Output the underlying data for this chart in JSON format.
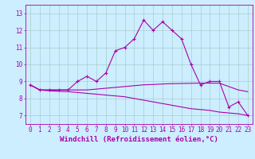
{
  "xlabel": "Windchill (Refroidissement éolien,°C)",
  "bg_color": "#cceeff",
  "grid_color": "#aacccc",
  "line_color": "#aa00aa",
  "x_ticks": [
    0,
    1,
    2,
    3,
    4,
    5,
    6,
    7,
    8,
    9,
    10,
    11,
    12,
    13,
    14,
    15,
    16,
    17,
    18,
    19,
    20,
    21,
    22,
    23
  ],
  "xlim": [
    -0.5,
    23.5
  ],
  "ylim": [
    6.5,
    13.5
  ],
  "y_ticks": [
    7,
    8,
    9,
    10,
    11,
    12,
    13
  ],
  "line1": [
    8.8,
    8.5,
    8.5,
    8.5,
    8.5,
    9.0,
    9.3,
    9.0,
    9.5,
    10.8,
    11.0,
    11.5,
    12.6,
    12.0,
    12.5,
    12.0,
    11.5,
    10.0,
    8.8,
    9.0,
    9.0,
    7.5,
    7.8,
    7.0
  ],
  "line2": [
    8.8,
    8.5,
    8.5,
    8.5,
    8.5,
    8.5,
    8.5,
    8.55,
    8.6,
    8.65,
    8.7,
    8.75,
    8.8,
    8.82,
    8.85,
    8.87,
    8.88,
    8.89,
    8.9,
    8.9,
    8.9,
    8.7,
    8.5,
    8.4
  ],
  "line3": [
    8.8,
    8.5,
    8.45,
    8.42,
    8.4,
    8.35,
    8.3,
    8.25,
    8.2,
    8.15,
    8.1,
    8.0,
    7.9,
    7.8,
    7.7,
    7.6,
    7.5,
    7.4,
    7.35,
    7.3,
    7.2,
    7.15,
    7.1,
    7.0
  ],
  "marker": "+",
  "markersize": 3,
  "linewidth": 0.8,
  "xlabel_fontsize": 6.5,
  "tick_fontsize": 5.5
}
